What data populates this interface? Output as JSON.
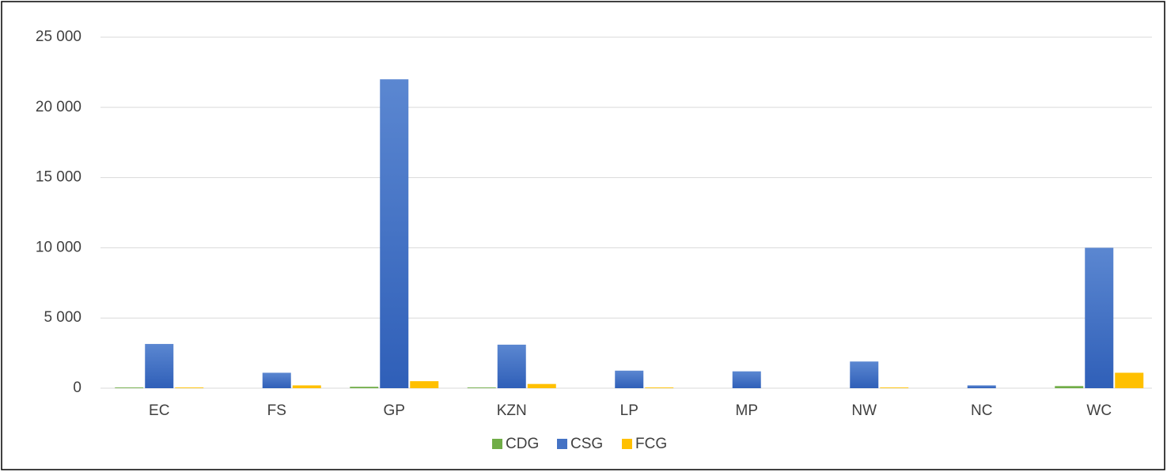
{
  "chart_data": {
    "type": "bar",
    "categories": [
      "EC",
      "FS",
      "GP",
      "KZN",
      "LP",
      "MP",
      "NW",
      "NC",
      "WC"
    ],
    "series": [
      {
        "name": "CDG",
        "color": "#70ad47",
        "values": [
          50,
          0,
          100,
          50,
          0,
          0,
          0,
          0,
          150
        ]
      },
      {
        "name": "CSG",
        "color": "#4472c4",
        "values": [
          3150,
          1100,
          22000,
          3100,
          1250,
          1200,
          1900,
          200,
          10000
        ]
      },
      {
        "name": "FCG",
        "color": "#ffc000",
        "values": [
          50,
          200,
          500,
          300,
          50,
          0,
          50,
          0,
          1100
        ]
      }
    ],
    "ylim": [
      0,
      25000
    ],
    "yticks": [
      0,
      {
        "value": 5000,
        "label": "5 000"
      },
      {
        "value": 10000,
        "label": "10 000"
      },
      {
        "value": 15000,
        "label": "15 000"
      },
      {
        "value": 20000,
        "label": "20 000"
      },
      {
        "value": 25000,
        "label": "25 000"
      }
    ],
    "grid": true,
    "legend": "bottom"
  }
}
